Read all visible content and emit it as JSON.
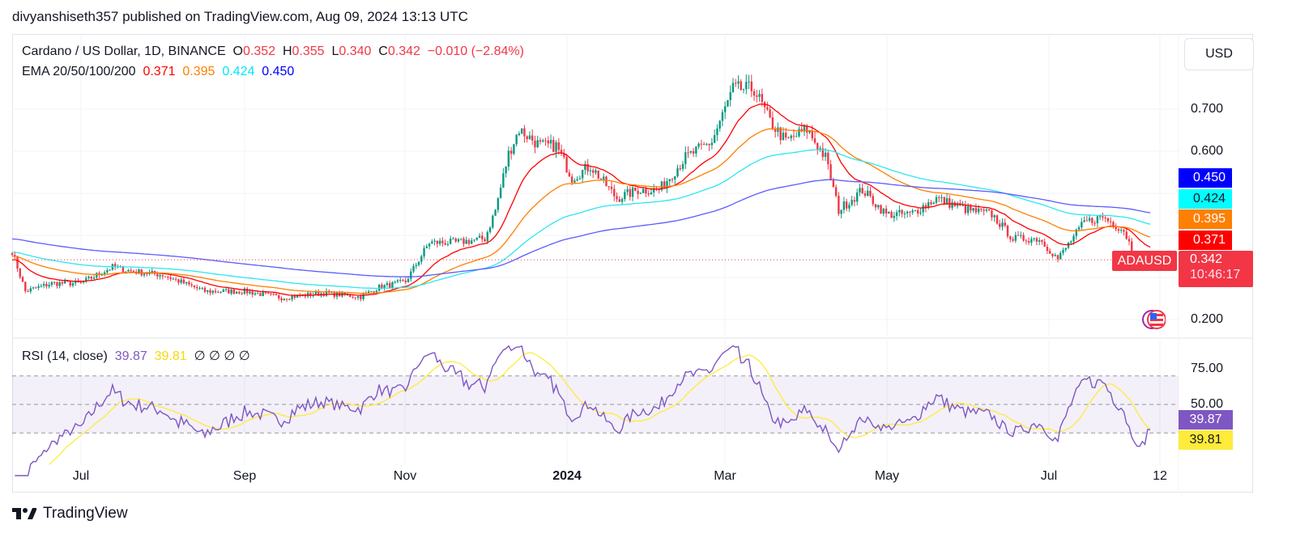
{
  "header": {
    "published": "divyanshiseth357 published on TradingView.com, Aug 09, 2024 13:13 UTC"
  },
  "legend": {
    "symbol": "Cardano / US Dollar, 1D, BINANCE",
    "o_label": "O",
    "o": "0.352",
    "h_label": "H",
    "h": "0.355",
    "l_label": "L",
    "l": "0.340",
    "c_label": "C",
    "c": "0.342",
    "change": "−0.010 (−2.84%)",
    "ema_label": "EMA 20/50/100/200",
    "ema20": "0.371",
    "ema50": "0.395",
    "ema100": "0.424",
    "ema200": "0.450",
    "rsi_label": "RSI (14, close)",
    "rsi": "39.87",
    "rsi_ma": "39.81",
    "rsi_extra": "∅ ∅ ∅ ∅"
  },
  "currency_button": "USD",
  "price_axis": {
    "ticks": [
      "0.700",
      "0.600",
      "0.200"
    ],
    "symbol_badge": "ADAUSD",
    "last_price": "0.342",
    "countdown": "10:46:17"
  },
  "rsi_axis": {
    "ticks": [
      "75.00",
      "50.00"
    ]
  },
  "time_axis": {
    "ticks": [
      "Jul",
      "Sep",
      "Nov",
      "2024",
      "Mar",
      "May",
      "Jul",
      "12"
    ]
  },
  "footer": {
    "brand": "TradingView"
  },
  "colors": {
    "up": "#089981",
    "down": "#f23645",
    "ema20": "#ff0000",
    "ema50": "#ff7f00",
    "ema100": "#00ffff",
    "ema200": "#0000ff",
    "rsi": "#7e57c2",
    "rsi_ma": "#ffeb3b"
  },
  "chart_data": {
    "type": "candlestick",
    "price_scale": "linear",
    "ylim": [
      0.2,
      0.8
    ],
    "start_date": "2023-06-05",
    "end_date": "2024-08-09",
    "close_anchors": [
      [
        "2023-06-05",
        0.363
      ],
      [
        "2023-06-10",
        0.267
      ],
      [
        "2023-06-20",
        0.286
      ],
      [
        "2023-07-01",
        0.286
      ],
      [
        "2023-07-13",
        0.325
      ],
      [
        "2023-07-20",
        0.315
      ],
      [
        "2023-08-01",
        0.306
      ],
      [
        "2023-08-17",
        0.267
      ],
      [
        "2023-09-01",
        0.267
      ],
      [
        "2023-09-15",
        0.252
      ],
      [
        "2023-10-01",
        0.263
      ],
      [
        "2023-10-15",
        0.254
      ],
      [
        "2023-10-22",
        0.277
      ],
      [
        "2023-11-01",
        0.29
      ],
      [
        "2023-11-10",
        0.383
      ],
      [
        "2023-11-20",
        0.383
      ],
      [
        "2023-12-01",
        0.392
      ],
      [
        "2023-12-05",
        0.46
      ],
      [
        "2023-12-10",
        0.594
      ],
      [
        "2023-12-14",
        0.652
      ],
      [
        "2023-12-22",
        0.613
      ],
      [
        "2023-12-28",
        0.613
      ],
      [
        "2024-01-03",
        0.537
      ],
      [
        "2024-01-10",
        0.565
      ],
      [
        "2024-01-20",
        0.488
      ],
      [
        "2024-01-28",
        0.508
      ],
      [
        "2024-02-05",
        0.508
      ],
      [
        "2024-02-15",
        0.585
      ],
      [
        "2024-02-25",
        0.623
      ],
      [
        "2024-03-04",
        0.748
      ],
      [
        "2024-03-12",
        0.748
      ],
      [
        "2024-03-18",
        0.671
      ],
      [
        "2024-03-24",
        0.623
      ],
      [
        "2024-04-01",
        0.652
      ],
      [
        "2024-04-08",
        0.585
      ],
      [
        "2024-04-13",
        0.46
      ],
      [
        "2024-04-22",
        0.508
      ],
      [
        "2024-05-01",
        0.45
      ],
      [
        "2024-05-10",
        0.45
      ],
      [
        "2024-05-20",
        0.488
      ],
      [
        "2024-06-01",
        0.46
      ],
      [
        "2024-06-10",
        0.45
      ],
      [
        "2024-06-18",
        0.392
      ],
      [
        "2024-06-28",
        0.392
      ],
      [
        "2024-07-05",
        0.344
      ],
      [
        "2024-07-15",
        0.431
      ],
      [
        "2024-07-22",
        0.444
      ],
      [
        "2024-07-30",
        0.412
      ],
      [
        "2024-08-05",
        0.325
      ],
      [
        "2024-08-09",
        0.342
      ]
    ],
    "ema_periods": [
      20,
      50,
      100,
      200
    ],
    "rsi_period": 14,
    "rsi_levels": [
      70,
      50,
      30
    ]
  }
}
